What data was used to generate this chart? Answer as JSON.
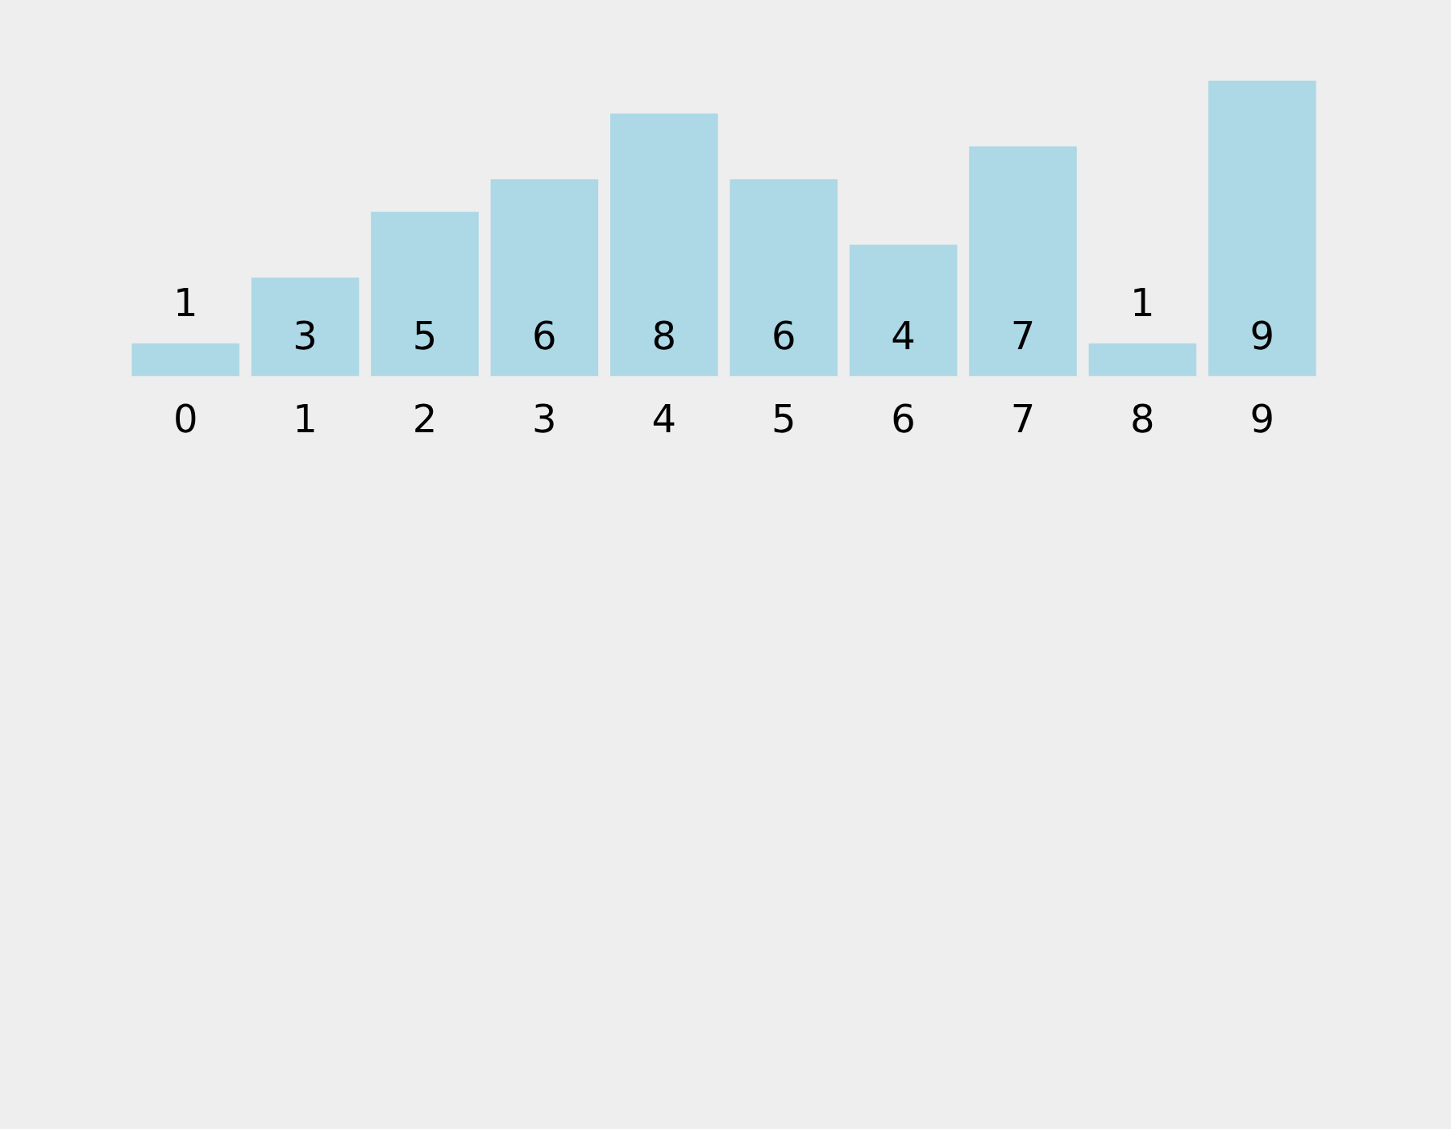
{
  "chart_data": {
    "type": "bar",
    "categories": [
      "0",
      "1",
      "2",
      "3",
      "4",
      "5",
      "6",
      "7",
      "8",
      "9"
    ],
    "values": [
      1,
      3,
      5,
      6,
      8,
      6,
      4,
      7,
      1,
      9
    ],
    "color": "#add8e6",
    "data_labels": true,
    "grid": false,
    "legend": false,
    "tick_labels": "x"
  }
}
